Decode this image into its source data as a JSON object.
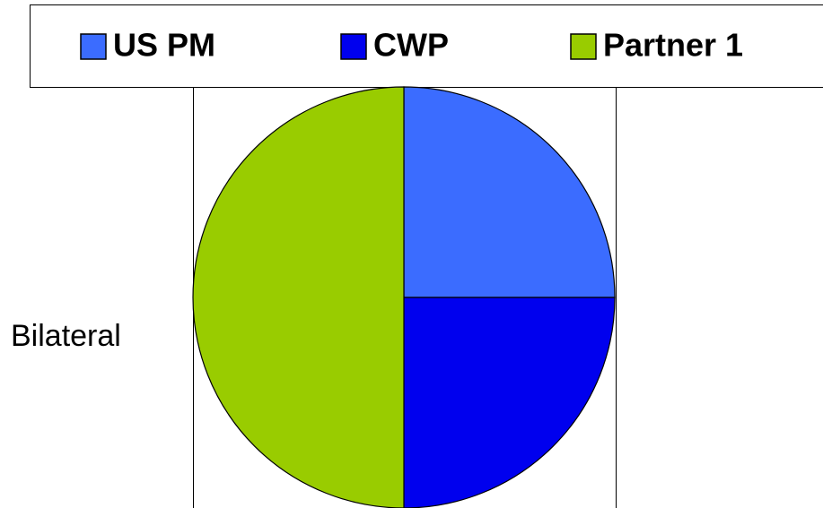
{
  "chart_data": {
    "type": "pie",
    "ylabel": "Bilateral",
    "categories": [
      "US PM",
      "CWP",
      "Partner 1"
    ],
    "values": [
      25,
      25,
      50
    ],
    "colors": [
      "#3b6cff",
      "#0000ee",
      "#99cc00"
    ],
    "legend": "top"
  }
}
